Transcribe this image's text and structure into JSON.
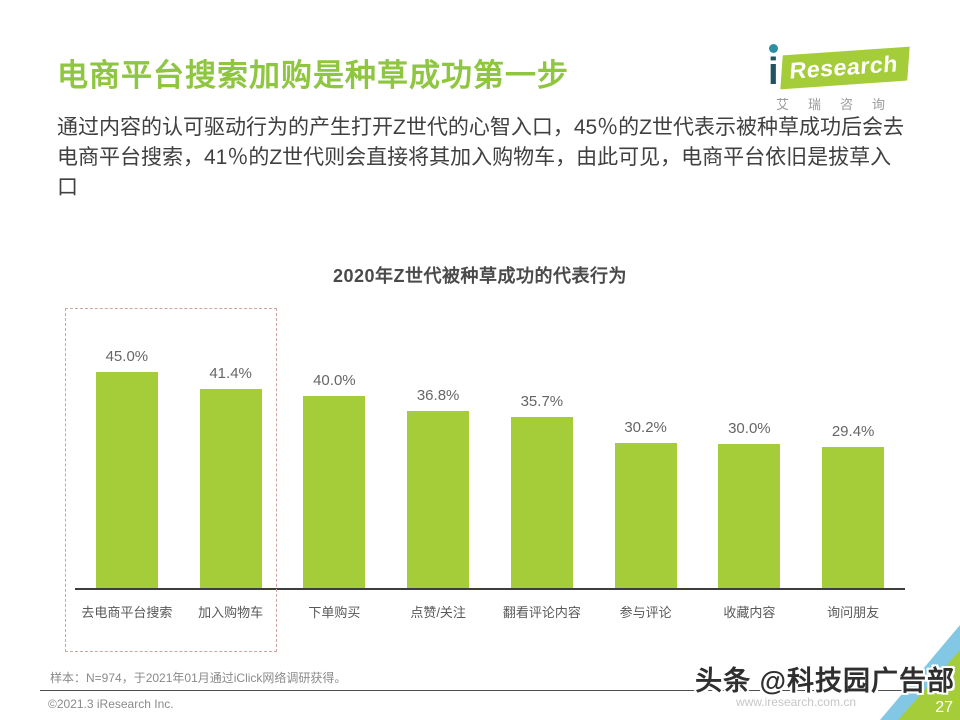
{
  "slide": {
    "title": "电商平台搜索加购是种草成功第一步",
    "body_text": "通过内容的认可驱动行为的产生打开Z世代的心智入口，45％的Z世代表示被种草成功后会去电商平台搜索，41％的Z世代则会直接将其加入购物车，由此可见，电商平台依旧是拔草入口",
    "page_number": "27"
  },
  "logo": {
    "i": "i",
    "wordmark": "Research",
    "subtitle": "艾瑞咨询"
  },
  "chart_data": {
    "type": "bar",
    "title": "2020年Z世代被种草成功的代表行为",
    "categories": [
      "去电商平台搜索",
      "加入购物车",
      "下单购买",
      "点赞/关注",
      "翻看评论内容",
      "参与评论",
      "收藏内容",
      "询问朋友"
    ],
    "values": [
      45.0,
      41.4,
      40.0,
      36.8,
      35.7,
      30.2,
      30.0,
      29.4
    ],
    "value_labels": [
      "45.0%",
      "41.4%",
      "40.0%",
      "36.8%",
      "35.7%",
      "30.2%",
      "30.0%",
      "29.4%"
    ],
    "unit": "%",
    "ylim": [
      0,
      50
    ],
    "grid": false,
    "legend": "none",
    "bar_color": "#a5cd39",
    "highlighted_categories": [
      "去电商平台搜索",
      "加入购物车"
    ],
    "highlight_box_style": "dashed"
  },
  "footer": {
    "sample_note": "样本：N=974，于2021年01月通过iClick网络调研获得。",
    "copyright": "©2021.3 iResearch Inc.",
    "website": "www.iresearch.com.cn",
    "watermark": "头条 @科技园广告部"
  },
  "colors": {
    "title_green": "#8ec63f",
    "bar_green": "#a5cd39",
    "corner_blue": "#82c8e5",
    "corner_green": "#a5cd39",
    "highlight_dash_pink": "#cfa3a3"
  }
}
